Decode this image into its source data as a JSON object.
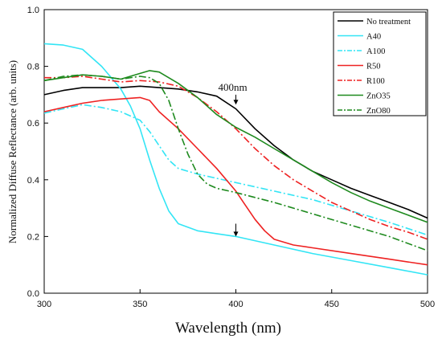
{
  "chart_data": {
    "type": "line",
    "title": "",
    "xlabel": "Wavelength (nm)",
    "ylabel": "Normalized Diffuse Reflectance (arb. units)",
    "xlim": [
      300,
      500
    ],
    "ylim": [
      0,
      1.0
    ],
    "x_ticks": [
      "300",
      "350",
      "400",
      "450",
      "500"
    ],
    "y_ticks": [
      "0.0",
      "0.2",
      "0.4",
      "0.6",
      "0.8",
      "1.0"
    ],
    "x_tick_values": [
      300,
      350,
      400,
      450,
      500
    ],
    "y_tick_values": [
      0,
      0.2,
      0.4,
      0.6,
      0.8,
      1.0
    ],
    "grid": false,
    "legend_position": "top-right",
    "annotations": [
      {
        "text": "400nm",
        "x": 400,
        "y": 0.67,
        "arrow_from": [
          400,
          0.7
        ],
        "arrow_to": [
          400,
          0.665
        ]
      },
      {
        "text": "",
        "x": 400,
        "y": 0.2,
        "arrow_from": [
          400,
          0.245
        ],
        "arrow_to": [
          400,
          0.2
        ]
      }
    ],
    "series": [
      {
        "name": "No treatment",
        "color": "#000000",
        "dash": "solid",
        "points": [
          [
            300,
            0.7
          ],
          [
            310,
            0.715
          ],
          [
            320,
            0.725
          ],
          [
            330,
            0.725
          ],
          [
            340,
            0.725
          ],
          [
            350,
            0.73
          ],
          [
            360,
            0.725
          ],
          [
            370,
            0.72
          ],
          [
            380,
            0.71
          ],
          [
            390,
            0.695
          ],
          [
            400,
            0.65
          ],
          [
            410,
            0.58
          ],
          [
            420,
            0.52
          ],
          [
            430,
            0.47
          ],
          [
            440,
            0.43
          ],
          [
            450,
            0.4
          ],
          [
            460,
            0.37
          ],
          [
            470,
            0.345
          ],
          [
            480,
            0.32
          ],
          [
            490,
            0.295
          ],
          [
            500,
            0.265
          ]
        ]
      },
      {
        "name": "A40",
        "color": "#33E5F5",
        "dash": "solid",
        "points": [
          [
            300,
            0.88
          ],
          [
            310,
            0.875
          ],
          [
            320,
            0.86
          ],
          [
            330,
            0.8
          ],
          [
            340,
            0.72
          ],
          [
            345,
            0.66
          ],
          [
            350,
            0.58
          ],
          [
            355,
            0.47
          ],
          [
            360,
            0.37
          ],
          [
            365,
            0.29
          ],
          [
            370,
            0.245
          ],
          [
            380,
            0.22
          ],
          [
            390,
            0.21
          ],
          [
            400,
            0.2
          ],
          [
            420,
            0.17
          ],
          [
            440,
            0.14
          ],
          [
            460,
            0.115
          ],
          [
            480,
            0.09
          ],
          [
            500,
            0.065
          ]
        ]
      },
      {
        "name": "A100",
        "color": "#33E5F5",
        "dash": "dashdot",
        "points": [
          [
            300,
            0.635
          ],
          [
            310,
            0.65
          ],
          [
            320,
            0.665
          ],
          [
            330,
            0.655
          ],
          [
            340,
            0.64
          ],
          [
            350,
            0.61
          ],
          [
            355,
            0.57
          ],
          [
            360,
            0.52
          ],
          [
            365,
            0.47
          ],
          [
            370,
            0.44
          ],
          [
            380,
            0.42
          ],
          [
            390,
            0.405
          ],
          [
            400,
            0.39
          ],
          [
            420,
            0.36
          ],
          [
            440,
            0.33
          ],
          [
            460,
            0.29
          ],
          [
            480,
            0.25
          ],
          [
            500,
            0.205
          ]
        ]
      },
      {
        "name": "R50",
        "color": "#EE2222",
        "dash": "solid",
        "points": [
          [
            300,
            0.64
          ],
          [
            310,
            0.655
          ],
          [
            320,
            0.67
          ],
          [
            330,
            0.68
          ],
          [
            340,
            0.685
          ],
          [
            350,
            0.69
          ],
          [
            355,
            0.68
          ],
          [
            360,
            0.64
          ],
          [
            370,
            0.58
          ],
          [
            380,
            0.51
          ],
          [
            390,
            0.44
          ],
          [
            400,
            0.36
          ],
          [
            405,
            0.31
          ],
          [
            410,
            0.26
          ],
          [
            415,
            0.22
          ],
          [
            420,
            0.19
          ],
          [
            430,
            0.17
          ],
          [
            440,
            0.16
          ],
          [
            460,
            0.14
          ],
          [
            480,
            0.12
          ],
          [
            500,
            0.1
          ]
        ]
      },
      {
        "name": "R100",
        "color": "#EE2222",
        "dash": "dashdot",
        "points": [
          [
            300,
            0.76
          ],
          [
            310,
            0.76
          ],
          [
            320,
            0.765
          ],
          [
            330,
            0.755
          ],
          [
            340,
            0.745
          ],
          [
            350,
            0.75
          ],
          [
            360,
            0.745
          ],
          [
            370,
            0.73
          ],
          [
            375,
            0.71
          ],
          [
            380,
            0.69
          ],
          [
            390,
            0.64
          ],
          [
            400,
            0.58
          ],
          [
            410,
            0.51
          ],
          [
            420,
            0.45
          ],
          [
            430,
            0.4
          ],
          [
            440,
            0.36
          ],
          [
            450,
            0.32
          ],
          [
            460,
            0.29
          ],
          [
            470,
            0.26
          ],
          [
            480,
            0.235
          ],
          [
            490,
            0.215
          ],
          [
            500,
            0.19
          ]
        ]
      },
      {
        "name": "ZnO35",
        "color": "#1E8A1E",
        "dash": "solid",
        "points": [
          [
            300,
            0.75
          ],
          [
            310,
            0.76
          ],
          [
            320,
            0.77
          ],
          [
            330,
            0.765
          ],
          [
            340,
            0.755
          ],
          [
            350,
            0.775
          ],
          [
            355,
            0.785
          ],
          [
            360,
            0.78
          ],
          [
            370,
            0.74
          ],
          [
            380,
            0.69
          ],
          [
            390,
            0.63
          ],
          [
            400,
            0.585
          ],
          [
            410,
            0.55
          ],
          [
            420,
            0.51
          ],
          [
            430,
            0.47
          ],
          [
            440,
            0.43
          ],
          [
            450,
            0.39
          ],
          [
            460,
            0.355
          ],
          [
            470,
            0.325
          ],
          [
            480,
            0.3
          ],
          [
            490,
            0.275
          ],
          [
            500,
            0.25
          ]
        ]
      },
      {
        "name": "ZnO80",
        "color": "#1E8A1E",
        "dash": "dashdot",
        "points": [
          [
            300,
            0.75
          ],
          [
            310,
            0.765
          ],
          [
            320,
            0.77
          ],
          [
            330,
            0.765
          ],
          [
            340,
            0.755
          ],
          [
            350,
            0.765
          ],
          [
            355,
            0.76
          ],
          [
            360,
            0.74
          ],
          [
            365,
            0.68
          ],
          [
            370,
            0.58
          ],
          [
            375,
            0.49
          ],
          [
            380,
            0.42
          ],
          [
            385,
            0.385
          ],
          [
            390,
            0.37
          ],
          [
            400,
            0.355
          ],
          [
            420,
            0.32
          ],
          [
            440,
            0.28
          ],
          [
            460,
            0.24
          ],
          [
            480,
            0.2
          ],
          [
            500,
            0.15
          ]
        ]
      }
    ]
  }
}
